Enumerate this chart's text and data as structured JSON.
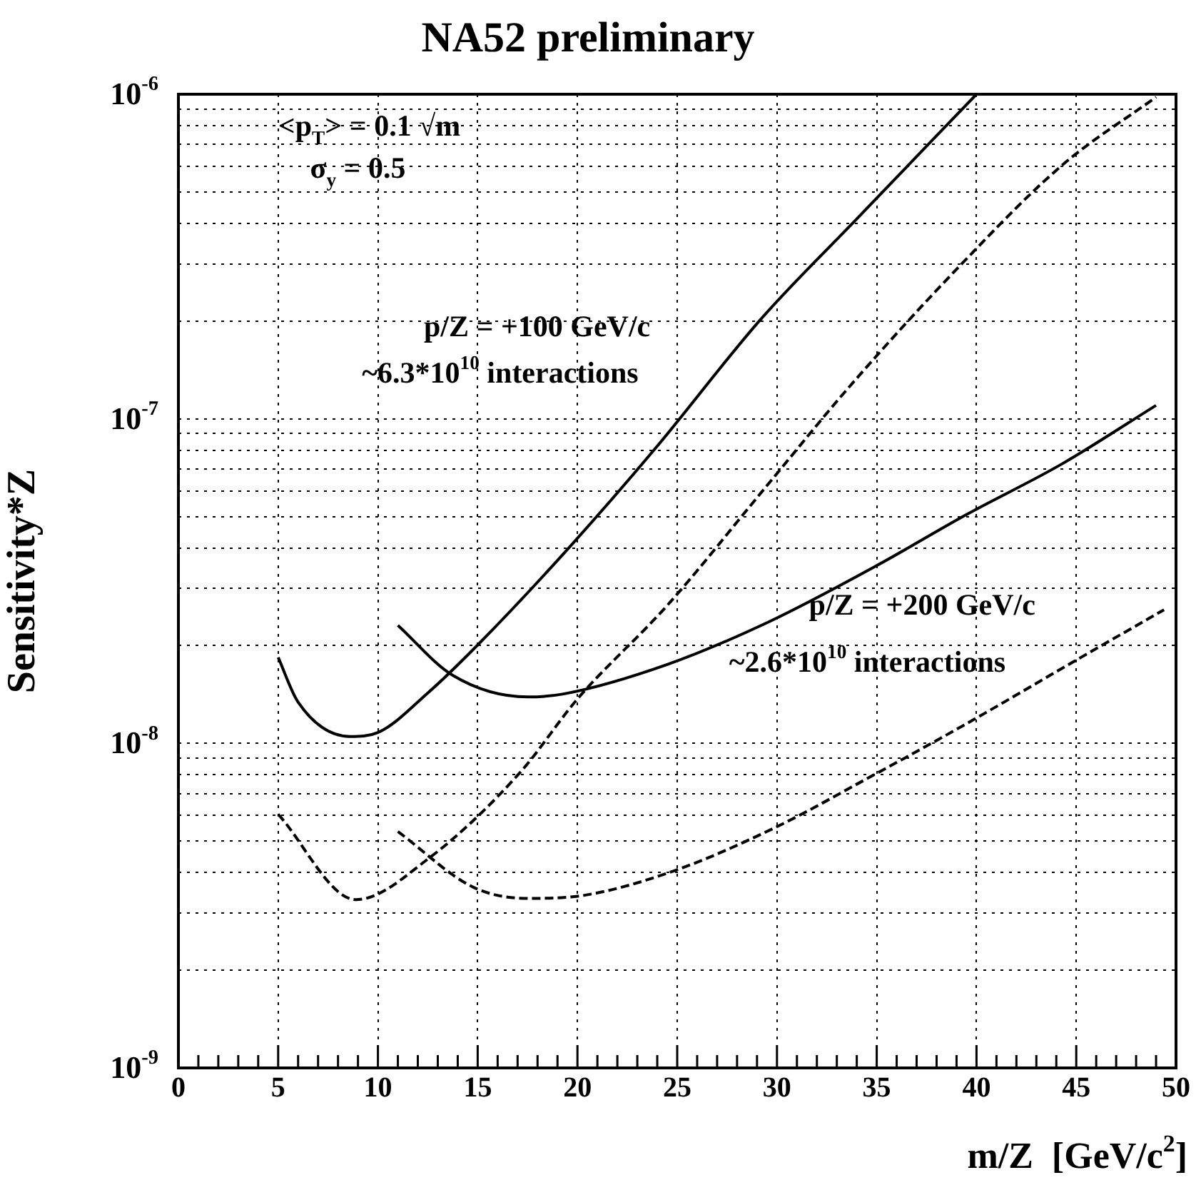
{
  "chart_data": {
    "type": "line",
    "title": "NA52 preliminary",
    "xlabel": "m/Z  [GeV/c$^{2}$]",
    "ylabel": "Sensitivity*Z",
    "annotations": [
      "<p$_{T}$> = 0.1 √m",
      "σ$_{y}$ = 0.5",
      "p/Z = +100 GeV/c",
      "~6.3*10$^{10}$ interactions",
      "p/Z = +200 GeV/c",
      "~2.6*10$^{10}$ interactions"
    ],
    "series": [
      {
        "color": "#000000",
        "line_style": "solid",
        "x": [
          5,
          6,
          8.6,
          10,
          12.5,
          15,
          19.5,
          23.9,
          29.2,
          34,
          40
        ],
        "values": [
          1.84e-08,
          1.34e-08,
          1.05e-08,
          1.08e-08,
          1.43e-08,
          2.01e-08,
          3.96e-08,
          8.1e-08,
          2.03e-07,
          4.13e-07,
          1e-06
        ]
      },
      {
        "color": "#000000",
        "line_style": "dashed",
        "x": [
          5,
          8.9,
          12.5,
          17.1,
          20,
          24.5,
          29.4,
          33.7,
          39.3,
          44.3,
          49
        ],
        "values": [
          6.05e-09,
          3.3e-09,
          4.4e-09,
          8.1e-09,
          1.37e-08,
          2.66e-08,
          6.12e-08,
          1.27e-07,
          3.02e-07,
          6.05e-07,
          9.8e-07
        ]
      },
      {
        "color": "#000000",
        "line_style": "solid",
        "x": [
          11,
          13.75,
          17.5,
          19.3,
          24.5,
          29.6,
          35,
          39.5,
          44.3,
          49
        ],
        "values": [
          2.31e-08,
          1.62e-08,
          1.39e-08,
          1.42e-08,
          1.75e-08,
          2.37e-08,
          3.53e-08,
          5.07e-08,
          7.27e-08,
          1.1e-07
        ]
      },
      {
        "color": "#000000",
        "line_style": "dashed",
        "x": [
          11,
          14.8,
          17.5,
          20.3,
          24.8,
          29.9,
          34.5,
          39.5,
          45.3,
          49.4
        ],
        "values": [
          5.35e-09,
          3.6e-09,
          3.33e-09,
          3.4e-09,
          4.04e-09,
          5.5e-09,
          7.78e-09,
          1.15e-08,
          1.85e-08,
          2.58e-08
        ]
      }
    ],
    "xlim": [
      0,
      50
    ],
    "xticks": [
      0,
      {
        "value": 1,
        "label": null
      },
      {
        "value": 2,
        "label": null
      },
      {
        "value": 3,
        "label": null
      },
      {
        "value": 4,
        "label": null
      },
      5,
      {
        "value": 6,
        "label": null
      },
      {
        "value": 7,
        "label": null
      },
      {
        "value": 8,
        "label": null
      },
      {
        "value": 9,
        "label": null
      },
      10,
      {
        "value": 11,
        "label": null
      },
      {
        "value": 12,
        "label": null
      },
      {
        "value": 13,
        "label": null
      },
      {
        "value": 14,
        "label": null
      },
      15,
      {
        "value": 16,
        "label": null
      },
      {
        "value": 17,
        "label": null
      },
      {
        "value": 18,
        "label": null
      },
      {
        "value": 19,
        "label": null
      },
      20,
      {
        "value": 21,
        "label": null
      },
      {
        "value": 22,
        "label": null
      },
      {
        "value": 23,
        "label": null
      },
      {
        "value": 24,
        "label": null
      },
      25,
      {
        "value": 26,
        "label": null
      },
      {
        "value": 27,
        "label": null
      },
      {
        "value": 28,
        "label": null
      },
      {
        "value": 29,
        "label": null
      },
      30,
      {
        "value": 31,
        "label": null
      },
      {
        "value": 32,
        "label": null
      },
      {
        "value": 33,
        "label": null
      },
      {
        "value": 34,
        "label": null
      },
      35,
      {
        "value": 36,
        "label": null
      },
      {
        "value": 37,
        "label": null
      },
      {
        "value": 38,
        "label": null
      },
      {
        "value": 39,
        "label": null
      },
      40,
      {
        "value": 41,
        "label": null
      },
      {
        "value": 42,
        "label": null
      },
      {
        "value": 43,
        "label": null
      },
      {
        "value": 44,
        "label": null
      },
      45,
      {
        "value": 46,
        "label": null
      },
      {
        "value": 47,
        "label": null
      },
      {
        "value": 48,
        "label": null
      },
      {
        "value": 49,
        "label": null
      },
      50
    ],
    "ylim": [
      1e-09,
      1e-06
    ],
    "log": "y",
    "yticks": [
      {
        "value": 1e-09,
        "label": "10$^{-9}$"
      },
      {
        "value": 2e-09,
        "label": null
      },
      {
        "value": 3e-09,
        "label": null
      },
      {
        "value": 4e-09,
        "label": null
      },
      {
        "value": 5e-09,
        "label": null
      },
      {
        "value": 6e-09,
        "label": null
      },
      {
        "value": 7e-09,
        "label": null
      },
      {
        "value": 8e-09,
        "label": null
      },
      {
        "value": 9e-09,
        "label": null
      },
      {
        "value": 1e-08,
        "label": "10$^{-8}$"
      },
      {
        "value": 2e-08,
        "label": null
      },
      {
        "value": 3e-08,
        "label": null
      },
      {
        "value": 4e-08,
        "label": null
      },
      {
        "value": 5e-08,
        "label": null
      },
      {
        "value": 6e-08,
        "label": null
      },
      {
        "value": 7e-08,
        "label": null
      },
      {
        "value": 8e-08,
        "label": null
      },
      {
        "value": 9e-08,
        "label": null
      },
      {
        "value": 1e-07,
        "label": "10$^{-7}$"
      },
      {
        "value": 2e-07,
        "label": null
      },
      {
        "value": 3e-07,
        "label": null
      },
      {
        "value": 4e-07,
        "label": null
      },
      {
        "value": 5e-07,
        "label": null
      },
      {
        "value": 6e-07,
        "label": null
      },
      {
        "value": 7e-07,
        "label": null
      },
      {
        "value": 8e-07,
        "label": null
      },
      {
        "value": 9e-07,
        "label": null
      },
      {
        "value": 1e-06,
        "label": "10$^{-6}$"
      }
    ],
    "grid": true,
    "legend": false,
    "marker": "none"
  }
}
